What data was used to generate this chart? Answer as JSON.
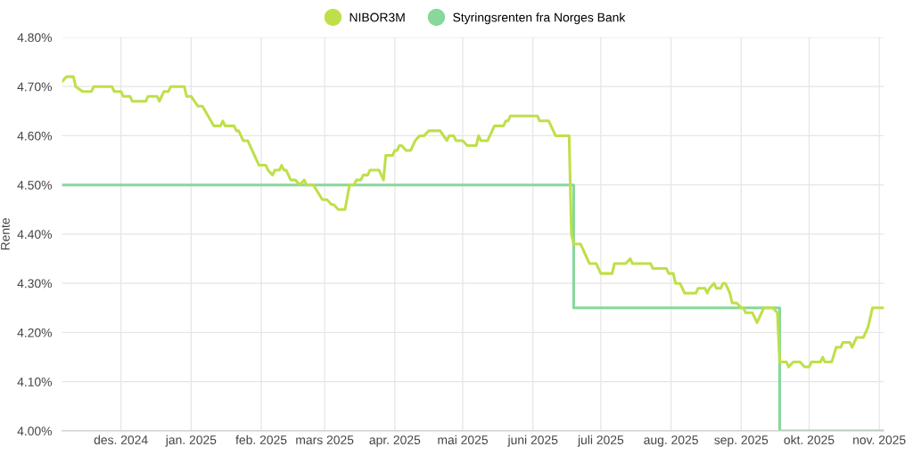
{
  "chart_data": {
    "type": "line",
    "ylabel": "Rente",
    "legend": "top",
    "grid": true,
    "marker": "none",
    "line_style": "solid",
    "xlim": [
      "2024-11-05",
      "2025-11-03"
    ],
    "xticks": [
      {
        "value": "2024-12-01",
        "label": "des. 2024"
      },
      {
        "value": "2025-01-01",
        "label": "jan. 2025"
      },
      {
        "value": "2025-02-01",
        "label": "feb. 2025"
      },
      {
        "value": "2025-03-01",
        "label": "mars 2025"
      },
      {
        "value": "2025-04-01",
        "label": "apr. 2025"
      },
      {
        "value": "2025-05-01",
        "label": "mai 2025"
      },
      {
        "value": "2025-06-01",
        "label": "juni 2025"
      },
      {
        "value": "2025-07-01",
        "label": "juli 2025"
      },
      {
        "value": "2025-08-01",
        "label": "aug. 2025"
      },
      {
        "value": "2025-09-01",
        "label": "sep. 2025"
      },
      {
        "value": "2025-10-01",
        "label": "okt. 2025"
      },
      {
        "value": "2025-11-01",
        "label": "nov. 2025"
      }
    ],
    "ylim": [
      4.0,
      4.8
    ],
    "yticks": [
      {
        "value": 4.0,
        "label": "4.00%"
      },
      {
        "value": 4.1,
        "label": "4.10%"
      },
      {
        "value": 4.2,
        "label": "4.20%"
      },
      {
        "value": 4.3,
        "label": "4.30%"
      },
      {
        "value": 4.4,
        "label": "4.40%"
      },
      {
        "value": 4.5,
        "label": "4.50%"
      },
      {
        "value": 4.6,
        "label": "4.60%"
      },
      {
        "value": 4.7,
        "label": "4.70%"
      },
      {
        "value": 4.8,
        "label": "4.80%"
      }
    ],
    "series": [
      {
        "name": "NIBOR3M",
        "color": "#bfdf4a",
        "x": [
          "2024-11-05",
          "2024-11-07",
          "2024-11-10",
          "2024-11-11",
          "2024-11-14",
          "2024-11-18",
          "2024-11-19",
          "2024-11-27",
          "2024-11-28",
          "2024-12-01",
          "2024-12-02",
          "2024-12-05",
          "2024-12-06",
          "2024-12-12",
          "2024-12-13",
          "2024-12-17",
          "2024-12-18",
          "2024-12-20",
          "2024-12-22",
          "2024-12-23",
          "2024-12-29",
          "2024-12-30",
          "2025-01-01",
          "2025-01-04",
          "2025-01-06",
          "2025-01-11",
          "2025-01-14",
          "2025-01-15",
          "2025-01-16",
          "2025-01-20",
          "2025-01-21",
          "2025-01-22",
          "2025-01-24",
          "2025-01-26",
          "2025-01-31",
          "2025-02-03",
          "2025-02-04",
          "2025-02-06",
          "2025-02-07",
          "2025-02-09",
          "2025-02-10",
          "2025-02-11",
          "2025-02-12",
          "2025-02-14",
          "2025-02-16",
          "2025-02-18",
          "2025-02-20",
          "2025-02-21",
          "2025-02-24",
          "2025-02-28",
          "2025-03-02",
          "2025-03-04",
          "2025-03-05",
          "2025-03-07",
          "2025-03-10",
          "2025-03-12",
          "2025-03-14",
          "2025-03-15",
          "2025-03-17",
          "2025-03-18",
          "2025-03-20",
          "2025-03-21",
          "2025-03-25",
          "2025-03-27",
          "2025-03-28",
          "2025-03-31",
          "2025-04-01",
          "2025-04-02",
          "2025-04-03",
          "2025-04-04",
          "2025-04-06",
          "2025-04-08",
          "2025-04-10",
          "2025-04-12",
          "2025-04-14",
          "2025-04-16",
          "2025-04-21",
          "2025-04-24",
          "2025-04-25",
          "2025-04-27",
          "2025-04-28",
          "2025-05-01",
          "2025-05-03",
          "2025-05-07",
          "2025-05-08",
          "2025-05-09",
          "2025-05-12",
          "2025-05-15",
          "2025-05-19",
          "2025-05-20",
          "2025-05-21",
          "2025-05-22",
          "2025-06-03",
          "2025-06-04",
          "2025-06-08",
          "2025-06-11",
          "2025-06-17",
          "2025-06-18",
          "2025-06-19",
          "2025-06-22",
          "2025-06-23",
          "2025-06-24",
          "2025-06-26",
          "2025-06-29",
          "2025-07-01",
          "2025-07-06",
          "2025-07-07",
          "2025-07-12",
          "2025-07-14",
          "2025-07-15",
          "2025-07-23",
          "2025-07-24",
          "2025-07-30",
          "2025-07-31",
          "2025-08-02",
          "2025-08-03",
          "2025-08-05",
          "2025-08-07",
          "2025-08-12",
          "2025-08-13",
          "2025-08-16",
          "2025-08-17",
          "2025-08-18",
          "2025-08-20",
          "2025-08-21",
          "2025-08-23",
          "2025-08-24",
          "2025-08-25",
          "2025-08-27",
          "2025-08-28",
          "2025-08-30",
          "2025-09-01",
          "2025-09-02",
          "2025-09-03",
          "2025-09-06",
          "2025-09-08",
          "2025-09-11",
          "2025-09-15",
          "2025-09-17",
          "2025-09-18",
          "2025-09-21",
          "2025-09-22",
          "2025-09-24",
          "2025-09-27",
          "2025-09-29",
          "2025-10-01",
          "2025-10-02",
          "2025-10-06",
          "2025-10-07",
          "2025-10-08",
          "2025-10-11",
          "2025-10-13",
          "2025-10-15",
          "2025-10-16",
          "2025-10-19",
          "2025-10-20",
          "2025-10-22",
          "2025-10-25",
          "2025-10-27",
          "2025-10-29",
          "2025-11-03"
        ],
        "values": [
          4.71,
          4.72,
          4.72,
          4.7,
          4.69,
          4.69,
          4.7,
          4.7,
          4.69,
          4.69,
          4.68,
          4.68,
          4.67,
          4.67,
          4.68,
          4.68,
          4.67,
          4.69,
          4.69,
          4.7,
          4.7,
          4.68,
          4.68,
          4.66,
          4.66,
          4.62,
          4.62,
          4.63,
          4.62,
          4.62,
          4.61,
          4.61,
          4.59,
          4.59,
          4.54,
          4.54,
          4.53,
          4.52,
          4.53,
          4.53,
          4.54,
          4.53,
          4.53,
          4.51,
          4.51,
          4.5,
          4.51,
          4.5,
          4.5,
          4.47,
          4.47,
          4.46,
          4.46,
          4.45,
          4.45,
          4.5,
          4.5,
          4.51,
          4.51,
          4.52,
          4.52,
          4.53,
          4.53,
          4.51,
          4.56,
          4.56,
          4.57,
          4.57,
          4.58,
          4.58,
          4.57,
          4.57,
          4.59,
          4.6,
          4.6,
          4.61,
          4.61,
          4.59,
          4.6,
          4.6,
          4.59,
          4.59,
          4.58,
          4.58,
          4.6,
          4.59,
          4.59,
          4.62,
          4.62,
          4.63,
          4.63,
          4.64,
          4.64,
          4.63,
          4.63,
          4.6,
          4.6,
          4.4,
          4.38,
          4.38,
          4.37,
          4.36,
          4.34,
          4.34,
          4.32,
          4.32,
          4.34,
          4.34,
          4.35,
          4.34,
          4.34,
          4.33,
          4.33,
          4.32,
          4.32,
          4.3,
          4.3,
          4.28,
          4.28,
          4.29,
          4.29,
          4.28,
          4.29,
          4.3,
          4.29,
          4.29,
          4.3,
          4.3,
          4.28,
          4.26,
          4.26,
          4.25,
          4.25,
          4.24,
          4.24,
          4.22,
          4.25,
          4.25,
          4.24,
          4.14,
          4.14,
          4.13,
          4.14,
          4.14,
          4.13,
          4.13,
          4.14,
          4.14,
          4.15,
          4.14,
          4.14,
          4.17,
          4.17,
          4.18,
          4.18,
          4.17,
          4.19,
          4.19,
          4.21,
          4.25,
          4.25
        ]
      },
      {
        "name": "Styringsrenten fra Norges Bank",
        "color": "#87d89a",
        "type": "step",
        "x": [
          "2024-11-05",
          "2025-06-19",
          "2025-09-18",
          "2025-11-03"
        ],
        "values": [
          4.5,
          4.25,
          4.0,
          4.0
        ]
      }
    ]
  }
}
